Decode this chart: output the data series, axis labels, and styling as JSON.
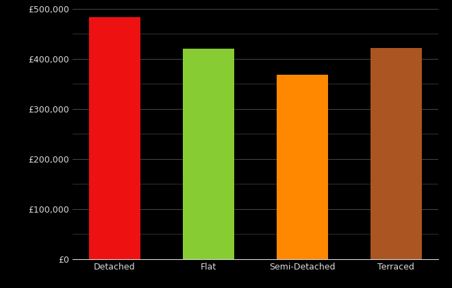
{
  "categories": [
    "Detached",
    "Flat",
    "Semi-Detached",
    "Terraced"
  ],
  "values": [
    483000,
    420000,
    368000,
    422000
  ],
  "bar_colors": [
    "#ee1111",
    "#88cc33",
    "#ff8800",
    "#aa5522"
  ],
  "background_color": "#000000",
  "text_color": "#dddddd",
  "grid_color": "#444444",
  "ylim": [
    0,
    500000
  ],
  "yticks_major": [
    0,
    100000,
    200000,
    300000,
    400000,
    500000
  ],
  "yticks_minor": [
    50000,
    150000,
    250000,
    350000,
    450000
  ],
  "bar_width": 0.55
}
